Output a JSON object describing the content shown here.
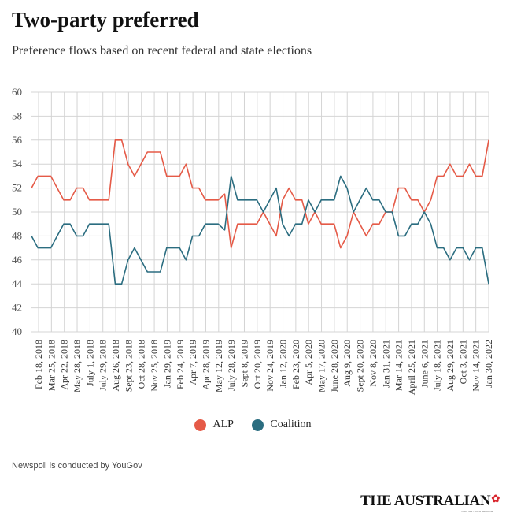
{
  "header": {
    "title": "Two-party preferred",
    "subtitle": "Preference flows based on recent federal and state elections"
  },
  "legend": {
    "alp": "ALP",
    "coalition": "Coalition"
  },
  "footer": {
    "source": "Newspoll is conducted by YouGov",
    "logo": "THE AUSTRALIAN",
    "logo_sub": "FIND THE TRUTH HEADLINE"
  },
  "colors": {
    "alp": "#e55a47",
    "coalition": "#2b6d80",
    "grid": "#d4d4d4"
  },
  "chart_data": {
    "type": "line",
    "title": "Two-party preferred",
    "subtitle": "Preference flows based on recent federal and state elections",
    "ylim": [
      40,
      60
    ],
    "yticks": [
      40,
      42,
      44,
      46,
      48,
      50,
      52,
      54,
      56,
      58,
      60
    ],
    "grid": true,
    "legend_position": "bottom-center",
    "x_labels": [
      "Feb 18, 2018",
      "Mar 25, 2018",
      "Apr 22, 2018",
      "May 28, 2018",
      "July 1, 2018",
      "July 29, 2018",
      "Aug 26, 2018",
      "Sept 23, 2018",
      "Oct 28, 2018",
      "Nov 25, 2018",
      "Jan 29, 2019",
      "Feb 24, 2019",
      "Apr 7, 2019",
      "Apr 28, 2019",
      "May 12, 2019",
      "July 28, 2019",
      "Sept 8, 2019",
      "Oct 20, 2019",
      "Nov 24, 2019",
      "Jan 12, 2020",
      "Feb 23, 2020",
      "Apr 5, 2020",
      "May 17, 2020",
      "June 28, 2020",
      "Aug 9, 2020",
      "Sept 20, 2020",
      "Nov 8, 2020",
      "Jan 31, 2021",
      "Mar 14, 2021",
      "April 25, 2021",
      "June 6, 2021",
      "July 18, 2021",
      "Aug 29, 2021",
      "Oct 3, 2021",
      "Nov 14, 2021",
      "Jan 30, 2022"
    ],
    "series": [
      {
        "name": "ALP",
        "values": [
          52,
          53,
          53,
          53,
          52,
          51,
          51,
          52,
          52,
          51,
          51,
          51,
          51,
          56,
          56,
          54,
          53,
          54,
          55,
          55,
          55,
          53,
          53,
          53,
          54,
          52,
          52,
          51,
          51,
          51,
          51.5,
          47,
          49,
          49,
          49,
          49,
          50,
          49,
          48,
          51,
          52,
          51,
          51,
          49,
          50,
          49,
          49,
          49,
          47,
          48,
          50,
          49,
          48,
          49,
          49,
          50,
          50,
          52,
          52,
          51,
          51,
          50,
          51,
          53,
          53,
          54,
          53,
          53,
          54,
          53,
          53,
          56
        ]
      },
      {
        "name": "Coalition",
        "values": [
          48,
          47,
          47,
          47,
          48,
          49,
          49,
          48,
          48,
          49,
          49,
          49,
          49,
          44,
          44,
          46,
          47,
          46,
          45,
          45,
          45,
          47,
          47,
          47,
          46,
          48,
          48,
          49,
          49,
          49,
          48.5,
          53,
          51,
          51,
          51,
          51,
          50,
          51,
          52,
          49,
          48,
          49,
          49,
          51,
          50,
          51,
          51,
          51,
          53,
          52,
          50,
          51,
          52,
          51,
          51,
          50,
          50,
          48,
          48,
          49,
          49,
          50,
          49,
          47,
          47,
          46,
          47,
          47,
          46,
          47,
          47,
          44
        ]
      }
    ]
  }
}
